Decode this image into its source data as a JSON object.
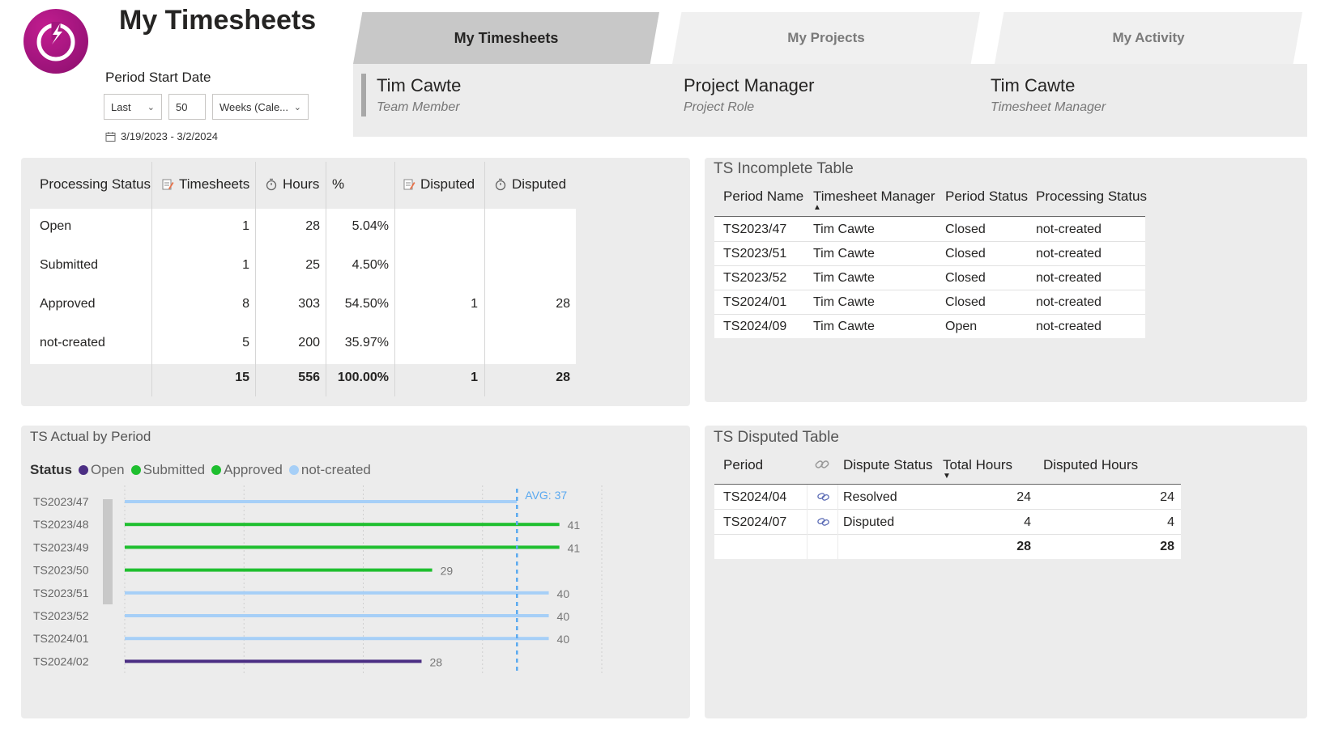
{
  "header": {
    "title": "My Timesheets",
    "period_label": "Period Start Date",
    "relative": "Last",
    "count": "50",
    "unit": "Weeks (Cale...",
    "date_range": "3/19/2023 - 3/2/2024"
  },
  "tabs": [
    {
      "label": "My Timesheets",
      "active": true
    },
    {
      "label": "My Projects",
      "active": false
    },
    {
      "label": "My Activity",
      "active": false
    }
  ],
  "info": [
    {
      "name": "Tim Cawte",
      "role": "Team Member"
    },
    {
      "name": "Project Manager",
      "role": "Project Role"
    },
    {
      "name": "Tim Cawte",
      "role": "Timesheet Manager"
    }
  ],
  "status_table": {
    "headers": [
      "Processing Status",
      "Timesheets",
      "Hours",
      "%",
      "Disputed",
      "Disputed"
    ],
    "rows": [
      {
        "status": "Open",
        "timesheets": "1",
        "hours": "28",
        "pct": "5.04%",
        "disputed_ts": "",
        "disputed_hours": ""
      },
      {
        "status": "Submitted",
        "timesheets": "1",
        "hours": "25",
        "pct": "4.50%",
        "disputed_ts": "",
        "disputed_hours": ""
      },
      {
        "status": "Approved",
        "timesheets": "8",
        "hours": "303",
        "pct": "54.50%",
        "disputed_ts": "1",
        "disputed_hours": "28"
      },
      {
        "status": "not-created",
        "timesheets": "5",
        "hours": "200",
        "pct": "35.97%",
        "disputed_ts": "",
        "disputed_hours": ""
      }
    ],
    "totals": {
      "timesheets": "15",
      "hours": "556",
      "pct": "100.00%",
      "disputed_ts": "1",
      "disputed_hours": "28"
    }
  },
  "incomplete_table": {
    "title": "TS Incomplete Table",
    "headers": [
      "Period Name",
      "Timesheet Manager",
      "Period Status",
      "Processing Status"
    ],
    "rows": [
      [
        "TS2023/47",
        "Tim Cawte",
        "Closed",
        "not-created"
      ],
      [
        "TS2023/51",
        "Tim Cawte",
        "Closed",
        "not-created"
      ],
      [
        "TS2023/52",
        "Tim Cawte",
        "Closed",
        "not-created"
      ],
      [
        "TS2024/01",
        "Tim Cawte",
        "Closed",
        "not-created"
      ],
      [
        "TS2024/09",
        "Tim Cawte",
        "Open",
        "not-created"
      ]
    ]
  },
  "disputed_table": {
    "title": "TS Disputed Table",
    "headers": [
      "Period",
      "Dispute Status",
      "Total Hours",
      "Disputed Hours"
    ],
    "rows": [
      [
        "TS2024/04",
        "Resolved",
        "24",
        "24"
      ],
      [
        "TS2024/07",
        "Disputed",
        "4",
        "4"
      ]
    ],
    "totals": {
      "total_hours": "28",
      "disputed_hours": "28"
    }
  },
  "colors": {
    "Open": "#4b2e83",
    "Submitted": "#1fbf2f",
    "Approved": "#1fbf2f",
    "not-created": "#a6cff7",
    "avg": "#5aa9f0"
  },
  "chart_data": {
    "type": "bar",
    "orientation": "horizontal",
    "title": "TS Actual by Period",
    "legend_title": "Status",
    "legend": [
      "Open",
      "Submitted",
      "Approved",
      "not-created"
    ],
    "legend_position": "top-left",
    "categories": [
      "TS2023/47",
      "TS2023/48",
      "TS2023/49",
      "TS2023/50",
      "TS2023/51",
      "TS2023/52",
      "TS2024/01",
      "TS2024/02"
    ],
    "values": [
      37,
      41,
      41,
      29,
      40,
      40,
      40,
      28
    ],
    "statuses": [
      "not-created",
      "Approved",
      "Approved",
      "Approved",
      "not-created",
      "not-created",
      "not-created",
      "Open"
    ],
    "data_labels": [
      "",
      "41",
      "41",
      "29",
      "40",
      "40",
      "40",
      "28"
    ],
    "avg_label": "AVG: 37",
    "avg_value": 37,
    "xlim": [
      0,
      45
    ],
    "grid": true
  }
}
